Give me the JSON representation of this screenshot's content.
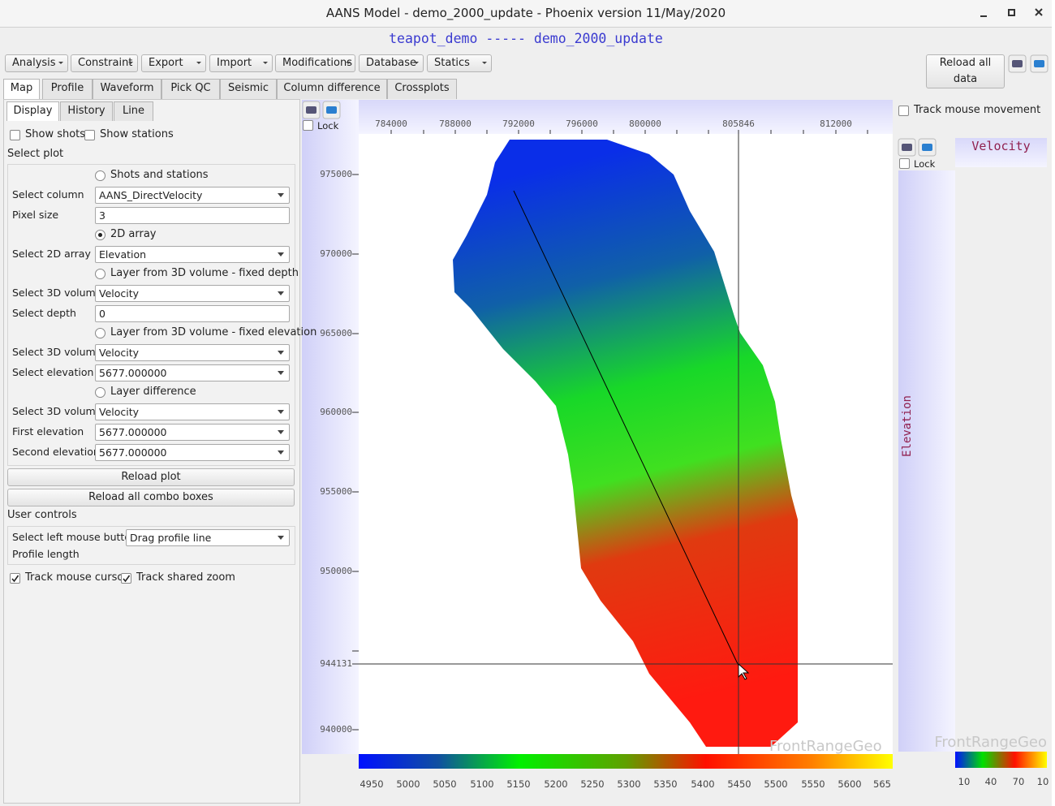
{
  "window_title": "AANS Model - demo_2000_update - Phoenix version 11/May/2020",
  "header": "teapot_demo ----- demo_2000_update",
  "menus": [
    "Analysis",
    "Constraint",
    "Export",
    "Import",
    "Modifications",
    "Database",
    "Statics"
  ],
  "reload_all_data": "Reload all data",
  "tabs": [
    "Map",
    "Profile",
    "Waveform",
    "Pick QC",
    "Seismic",
    "Column difference",
    "Crossplots"
  ],
  "active_tab": 0,
  "subtabs": [
    "Display",
    "History",
    "Line"
  ],
  "active_subtab": 0,
  "display": {
    "show_shots": {
      "label": "Show shots",
      "checked": false
    },
    "show_stations": {
      "label": "Show stations",
      "checked": false
    },
    "select_plot": "Select plot",
    "plot_rows": [
      {
        "kind": "radio",
        "label": "Shots and stations",
        "selected": false
      },
      {
        "kind": "select",
        "label": "Select column",
        "value": "AANS_DirectVelocity"
      },
      {
        "kind": "input",
        "label": "Pixel size",
        "value": "3"
      },
      {
        "kind": "radio",
        "label": "2D array",
        "selected": true
      },
      {
        "kind": "select",
        "label": "Select 2D array",
        "value": "Elevation"
      },
      {
        "kind": "radio",
        "label": "Layer from 3D volume - fixed depth",
        "selected": false
      },
      {
        "kind": "select",
        "label": "Select 3D volume",
        "value": "Velocity"
      },
      {
        "kind": "input",
        "label": "Select depth",
        "value": "0"
      },
      {
        "kind": "radio",
        "label": "Layer from 3D volume - fixed elevation",
        "selected": false
      },
      {
        "kind": "select",
        "label": "Select 3D volume",
        "value": "Velocity"
      },
      {
        "kind": "select",
        "label": "Select elevation",
        "value": "5677.000000"
      },
      {
        "kind": "radio",
        "label": "Layer difference",
        "selected": false
      },
      {
        "kind": "select",
        "label": "Select 3D volume",
        "value": "Velocity"
      },
      {
        "kind": "select",
        "label": "First elevation",
        "value": "5677.000000"
      },
      {
        "kind": "select",
        "label": "Second elevation",
        "value": "5677.000000"
      }
    ],
    "reload_plot": "Reload plot",
    "reload_combos": "Reload all combo boxes",
    "user_controls": "User controls",
    "mouse_button": {
      "label": "Select left mouse button",
      "value": "Drag profile line"
    },
    "profile_length": "Profile length",
    "track_cursor": {
      "label": "Track mouse cursor",
      "checked": true
    },
    "track_zoom": {
      "label": "Track shared zoom",
      "checked": true
    }
  },
  "map": {
    "lock": "Lock",
    "x_ticks": [
      784000,
      788000,
      792000,
      796000,
      800000,
      805846,
      812000
    ],
    "y_ticks": [
      975000,
      970000,
      965000,
      960000,
      955000,
      950000,
      944131,
      940000
    ],
    "watermark": "FrontRangeGeo",
    "colorbar_labels": [
      "4950",
      "5000",
      "5050",
      "5100",
      "5150",
      "5200",
      "5250",
      "5300",
      "5350",
      "5400",
      "5450",
      "5500",
      "5550",
      "5600",
      "565"
    ]
  },
  "side": {
    "track_mouse": {
      "label": "Track mouse movement",
      "checked": false
    },
    "lock": "Lock",
    "title": "Velocity",
    "axis_label": "Elevation",
    "watermark": "FrontRangeGeo",
    "colorbar_labels": [
      "10",
      "40",
      "70",
      "10"
    ]
  }
}
